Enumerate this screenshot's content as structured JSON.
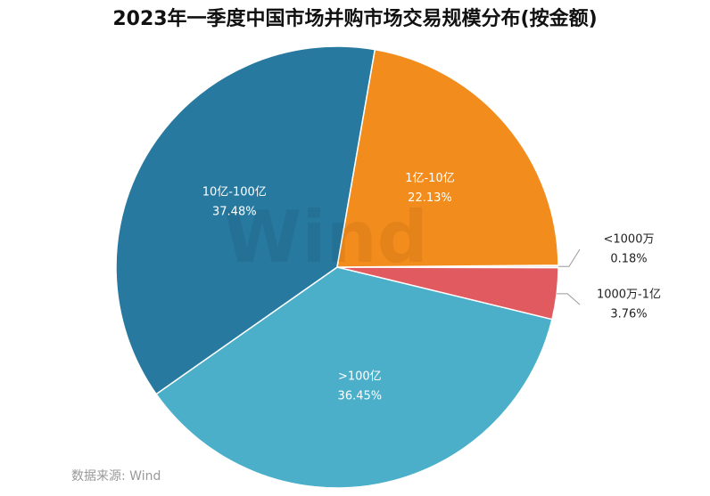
{
  "chart_data": {
    "type": "pie",
    "title": "2023年一季度中国市场并购市场交易规模分布(按金额)",
    "categories": [
      "<1000万",
      "1000万-1亿",
      ">100亿",
      "10亿-100亿",
      "1亿-10亿"
    ],
    "values": [
      0.18,
      3.76,
      36.45,
      37.48,
      22.13
    ],
    "value_labels": [
      "0.18%",
      "3.76%",
      "36.45%",
      "37.48%",
      "22.13%"
    ],
    "colors": [
      "#e8e8e8",
      "#e05a60",
      "#4bafca",
      "#27799f",
      "#f28c1c"
    ],
    "watermark": "Wind",
    "source": "数据来源: Wind"
  }
}
